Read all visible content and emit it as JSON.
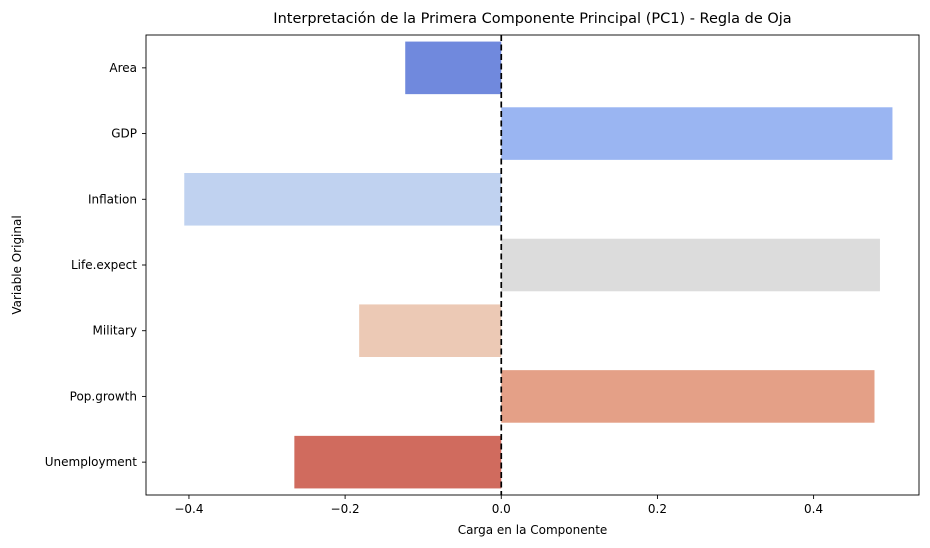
{
  "chart_data": {
    "type": "bar",
    "orientation": "horizontal",
    "title": "Interpretación de la Primera Componente Principal (PC1) - Regla de Oja",
    "xlabel": "Carga en la Componente",
    "ylabel": "Variable Original",
    "xlim": [
      -0.455,
      0.535
    ],
    "xticks": [
      -0.4,
      -0.2,
      0.0,
      0.2,
      0.4
    ],
    "xtick_labels": [
      "−0.4",
      "−0.2",
      "0.0",
      "0.2",
      "0.4"
    ],
    "categories": [
      "Area",
      "GDP",
      "Inflation",
      "Life.expect",
      "Military",
      "Pop.growth",
      "Unemployment"
    ],
    "values": [
      -0.123,
      0.501,
      -0.406,
      0.485,
      -0.182,
      0.478,
      -0.265
    ],
    "colors": [
      "#7089dd",
      "#9ab5f2",
      "#c0d2f0",
      "#dcdcdc",
      "#ecc9b5",
      "#e4a087",
      "#d06b5e"
    ],
    "reference_line": {
      "x": 0,
      "style": "dashed",
      "color": "#000000"
    },
    "grid": false
  }
}
